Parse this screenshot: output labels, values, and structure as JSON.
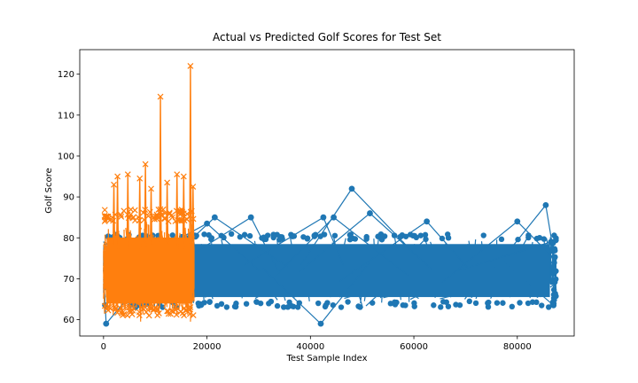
{
  "chart_data": {
    "type": "line",
    "title": "Actual vs Predicted Golf Scores for Test Set",
    "xlabel": "Test Sample Index",
    "ylabel": "Golf Score",
    "xlim": [
      -4600,
      91000
    ],
    "ylim": [
      56,
      126
    ],
    "x_ticks": [
      0,
      20000,
      40000,
      60000,
      80000
    ],
    "x_tick_labels": [
      "0",
      "20000",
      "40000",
      "60000",
      "80000"
    ],
    "y_ticks": [
      60,
      70,
      80,
      90,
      100,
      110,
      120
    ],
    "y_tick_labels": [
      "60",
      "70",
      "80",
      "90",
      "100",
      "110",
      "120"
    ],
    "grid": false,
    "series": [
      {
        "role": "actual",
        "color": "#1f77b4",
        "marker": "circle",
        "x_range": [
          0,
          87500
        ],
        "band": [
          63,
          81
        ],
        "outliers": [
          {
            "x": 500,
            "y": 59
          },
          {
            "x": 20000,
            "y": 83.5
          },
          {
            "x": 21500,
            "y": 85
          },
          {
            "x": 28500,
            "y": 85
          },
          {
            "x": 42500,
            "y": 85
          },
          {
            "x": 44500,
            "y": 85
          },
          {
            "x": 48000,
            "y": 92
          },
          {
            "x": 51500,
            "y": 86
          },
          {
            "x": 42000,
            "y": 59
          },
          {
            "x": 62500,
            "y": 84
          },
          {
            "x": 80000,
            "y": 84
          },
          {
            "x": 85500,
            "y": 88
          },
          {
            "x": 86500,
            "y": 79
          },
          {
            "x": 87000,
            "y": 63.5
          }
        ]
      },
      {
        "role": "predicted",
        "color": "#ff7f0e",
        "marker": "x",
        "x_range": [
          0,
          17500
        ],
        "band": [
          61,
          87
        ],
        "spikes": [
          {
            "x": 2000,
            "y": 93
          },
          {
            "x": 2700,
            "y": 95
          },
          {
            "x": 4700,
            "y": 95.5
          },
          {
            "x": 7000,
            "y": 94.5
          },
          {
            "x": 8100,
            "y": 98
          },
          {
            "x": 9200,
            "y": 92
          },
          {
            "x": 11000,
            "y": 114.5
          },
          {
            "x": 12300,
            "y": 93.5
          },
          {
            "x": 14200,
            "y": 95.5
          },
          {
            "x": 15500,
            "y": 95
          },
          {
            "x": 16800,
            "y": 122
          },
          {
            "x": 17300,
            "y": 92.5
          }
        ]
      }
    ]
  }
}
